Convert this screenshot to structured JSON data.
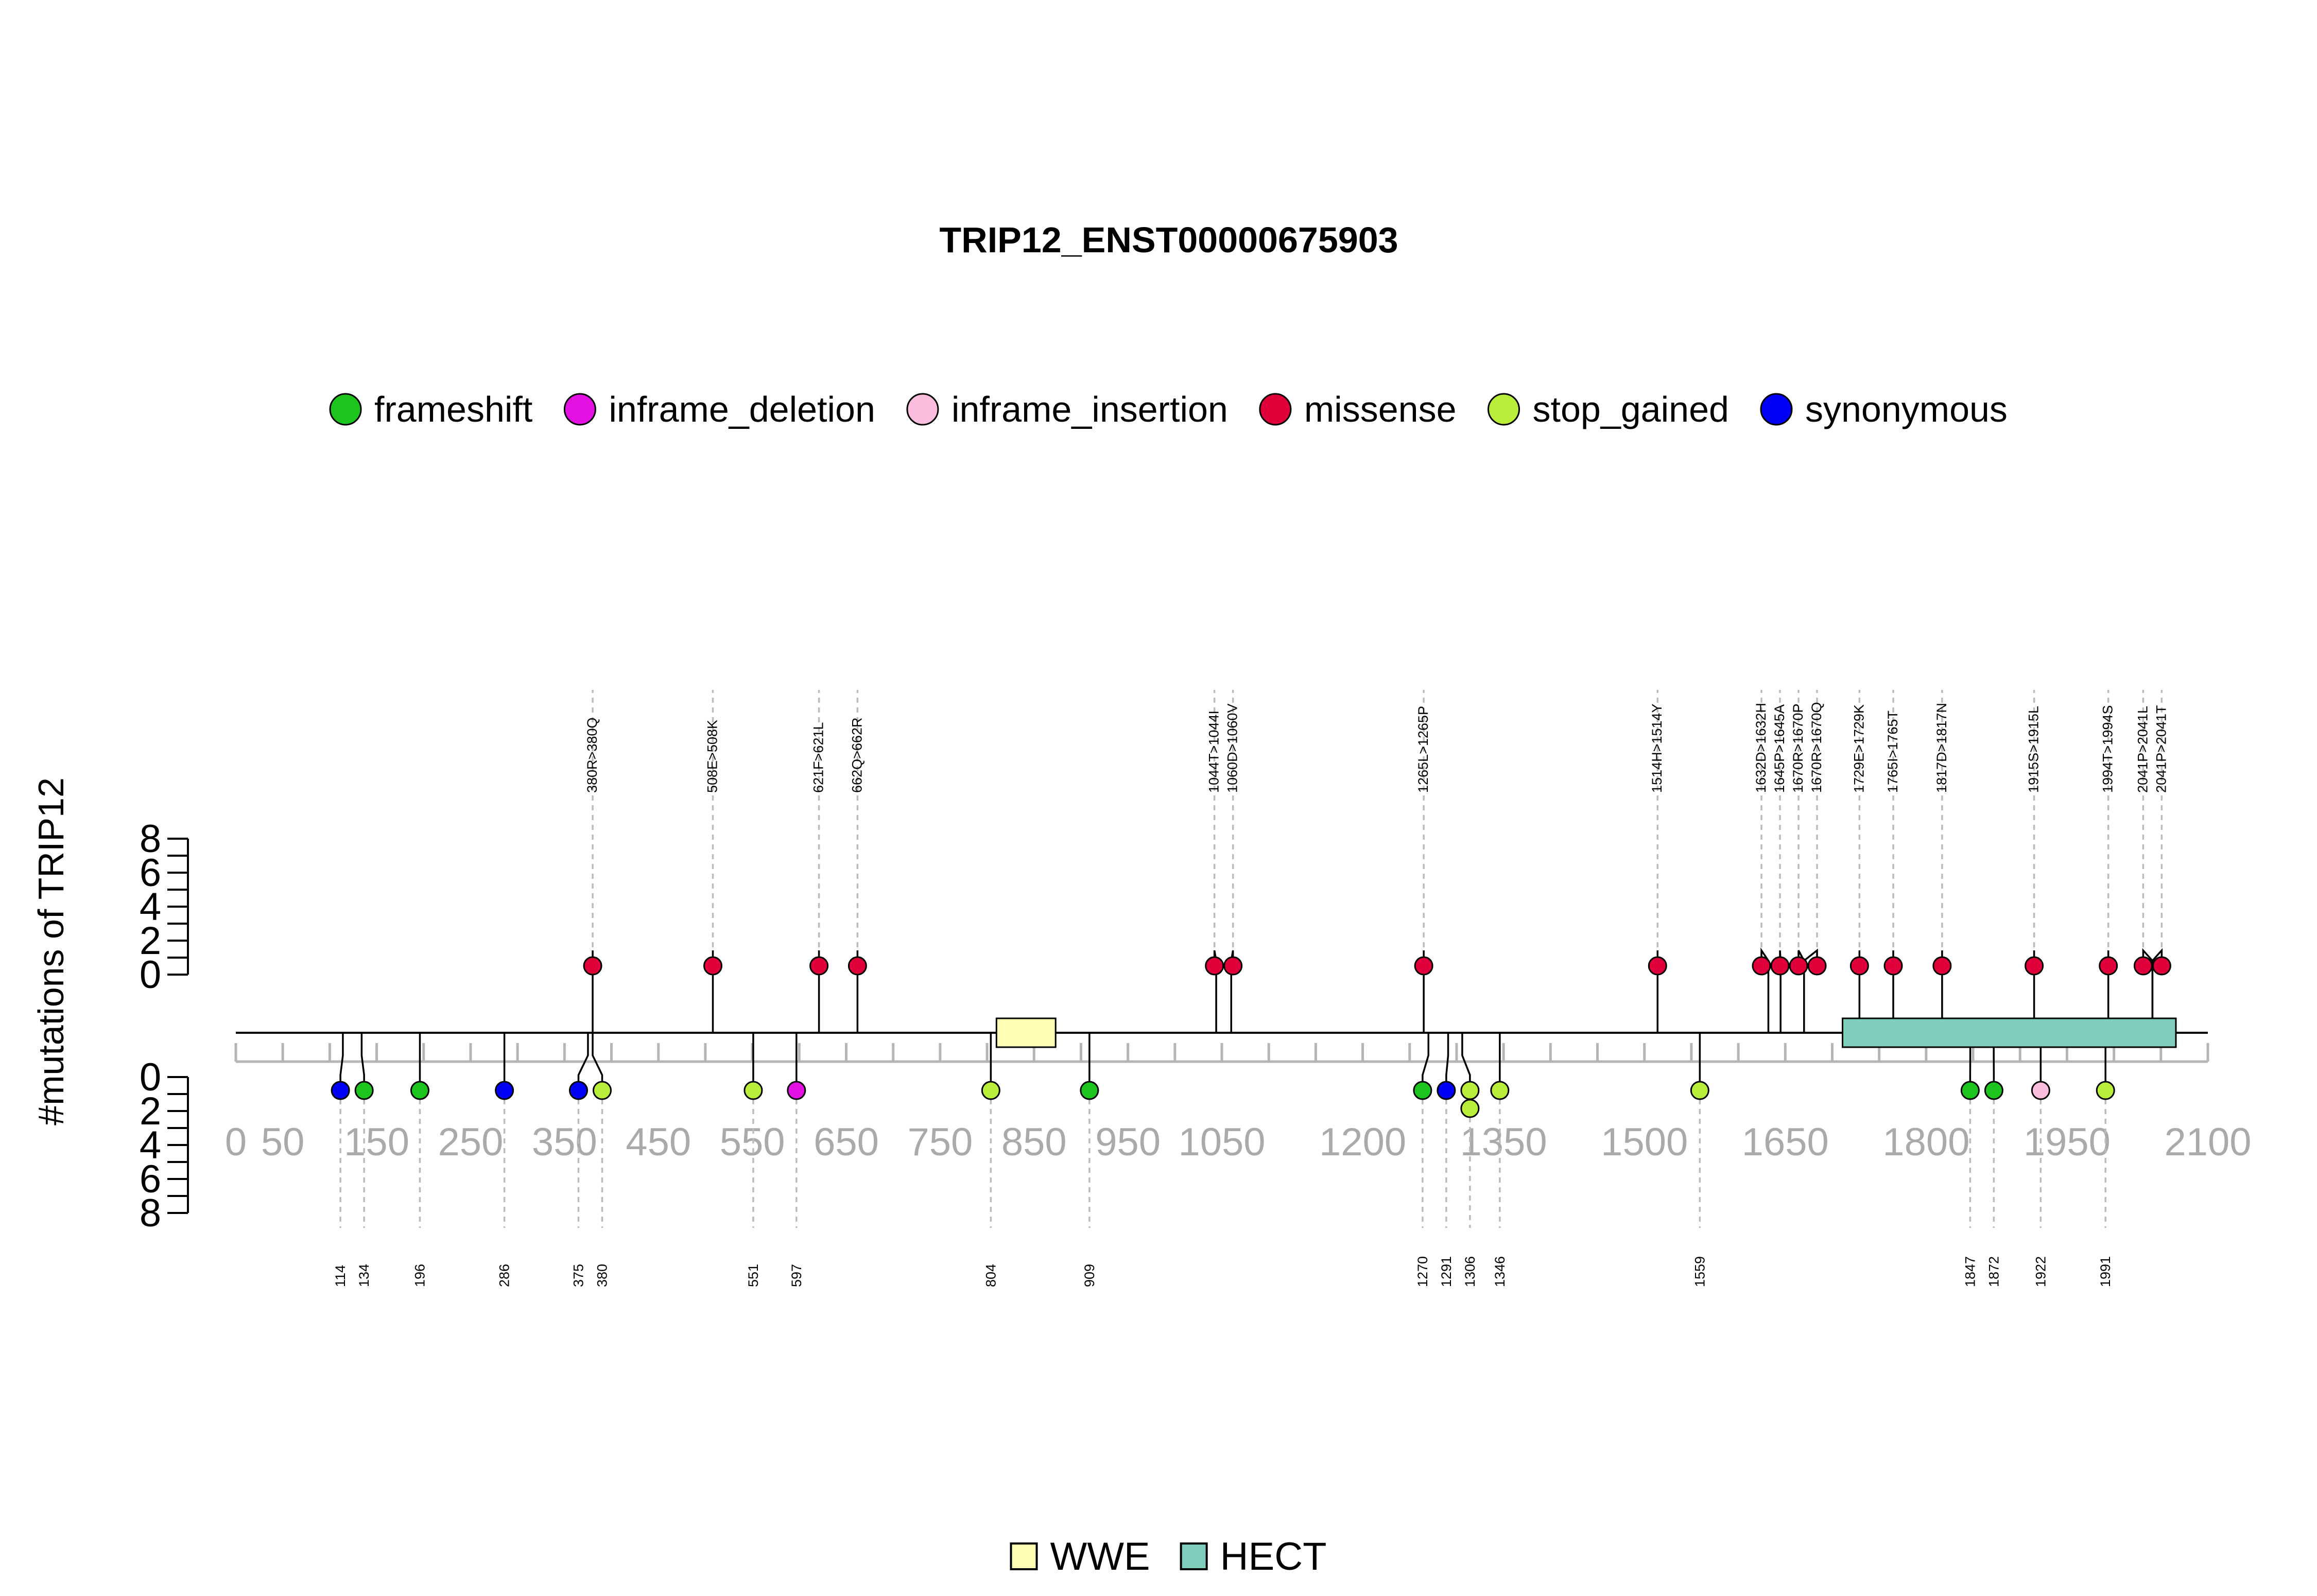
{
  "chart_data": {
    "type": "lollipop",
    "title": "TRIP12_ENST00000675903",
    "ylabel": "#mutations of TRIP12",
    "x_ticks": [
      0,
      50,
      150,
      250,
      350,
      450,
      550,
      650,
      750,
      850,
      950,
      1050,
      1200,
      1350,
      1500,
      1650,
      1800,
      1950,
      2100
    ],
    "x_minor_step": 50,
    "xlim": [
      0,
      2100
    ],
    "y_ticks": [
      0,
      2,
      4,
      6,
      8
    ],
    "ylim": [
      0,
      8
    ],
    "legend": [
      {
        "name": "frameshift",
        "color": "#1ec41e"
      },
      {
        "name": "inframe_deletion",
        "color": "#e312e3"
      },
      {
        "name": "inframe_insertion",
        "color": "#fbbedf"
      },
      {
        "name": "missense",
        "color": "#e0003a"
      },
      {
        "name": "stop_gained",
        "color": "#b9ee3a"
      },
      {
        "name": "synonymous",
        "color": "#0000f5"
      }
    ],
    "domains": [
      {
        "name": "WWE",
        "start": 810,
        "end": 873,
        "color": "#ffffb3"
      },
      {
        "name": "HECT",
        "start": 1711,
        "end": 2066,
        "color": "#7fcebc"
      }
    ],
    "mutations_top": [
      {
        "pos": 380,
        "label": "380R>380Q",
        "type": "missense",
        "count": 1
      },
      {
        "pos": 508,
        "label": "508E>508K",
        "type": "missense",
        "count": 1
      },
      {
        "pos": 621,
        "label": "621F>621L",
        "type": "missense",
        "count": 1
      },
      {
        "pos": 662,
        "label": "662Q>662R",
        "type": "missense",
        "count": 1
      },
      {
        "pos": 1044,
        "label": "1044T>1044I",
        "type": "missense",
        "count": 1
      },
      {
        "pos": 1060,
        "label": "1060D>1060V",
        "type": "missense",
        "count": 1
      },
      {
        "pos": 1265,
        "label": "1265L>1265P",
        "type": "missense",
        "count": 1
      },
      {
        "pos": 1514,
        "label": "1514H>1514Y",
        "type": "missense",
        "count": 1
      },
      {
        "pos": 1632,
        "label": "1632D>1632H",
        "type": "missense",
        "count": 1
      },
      {
        "pos": 1645,
        "label": "1645P>1645A",
        "type": "missense",
        "count": 1
      },
      {
        "pos": 1670,
        "label": "1670R>1670P",
        "type": "missense",
        "count": 1
      },
      {
        "pos": 1670,
        "label": "1670R>1670Q",
        "type": "missense",
        "count": 1
      },
      {
        "pos": 1729,
        "label": "1729E>1729K",
        "type": "missense",
        "count": 1
      },
      {
        "pos": 1765,
        "label": "1765I>1765T",
        "type": "missense",
        "count": 1
      },
      {
        "pos": 1817,
        "label": "1817D>1817N",
        "type": "missense",
        "count": 1
      },
      {
        "pos": 1915,
        "label": "1915S>1915L",
        "type": "missense",
        "count": 1
      },
      {
        "pos": 1994,
        "label": "1994T>1994S",
        "type": "missense",
        "count": 1
      },
      {
        "pos": 2041,
        "label": "2041P>2041L",
        "type": "missense",
        "count": 1
      },
      {
        "pos": 2041,
        "label": "2041P>2041T",
        "type": "missense",
        "count": 1
      }
    ],
    "mutations_bottom": [
      {
        "pos": 114,
        "label": "114",
        "type": "synonymous",
        "count": 1
      },
      {
        "pos": 134,
        "label": "134",
        "type": "frameshift",
        "count": 1
      },
      {
        "pos": 196,
        "label": "196",
        "type": "frameshift",
        "count": 1
      },
      {
        "pos": 286,
        "label": "286",
        "type": "synonymous",
        "count": 1
      },
      {
        "pos": 375,
        "label": "375",
        "type": "synonymous",
        "count": 1
      },
      {
        "pos": 380,
        "label": "380",
        "type": "stop_gained",
        "count": 1
      },
      {
        "pos": 551,
        "label": "551",
        "type": "stop_gained",
        "count": 1
      },
      {
        "pos": 597,
        "label": "597",
        "type": "inframe_deletion",
        "count": 1
      },
      {
        "pos": 804,
        "label": "804",
        "type": "stop_gained",
        "count": 1
      },
      {
        "pos": 909,
        "label": "909",
        "type": "frameshift",
        "count": 1
      },
      {
        "pos": 1270,
        "label": "1270",
        "type": "frameshift",
        "count": 1
      },
      {
        "pos": 1291,
        "label": "1291",
        "type": "synonymous",
        "count": 1
      },
      {
        "pos": 1306,
        "label": "1306",
        "type": "stop_gained",
        "count": 2
      },
      {
        "pos": 1346,
        "label": "1346",
        "type": "stop_gained",
        "count": 1
      },
      {
        "pos": 1559,
        "label": "1559",
        "type": "stop_gained",
        "count": 1
      },
      {
        "pos": 1847,
        "label": "1847",
        "type": "frameshift",
        "count": 1
      },
      {
        "pos": 1872,
        "label": "1872",
        "type": "frameshift",
        "count": 1
      },
      {
        "pos": 1922,
        "label": "1922",
        "type": "inframe_insertion",
        "count": 1
      },
      {
        "pos": 1991,
        "label": "1991",
        "type": "stop_gained",
        "count": 1
      }
    ]
  }
}
